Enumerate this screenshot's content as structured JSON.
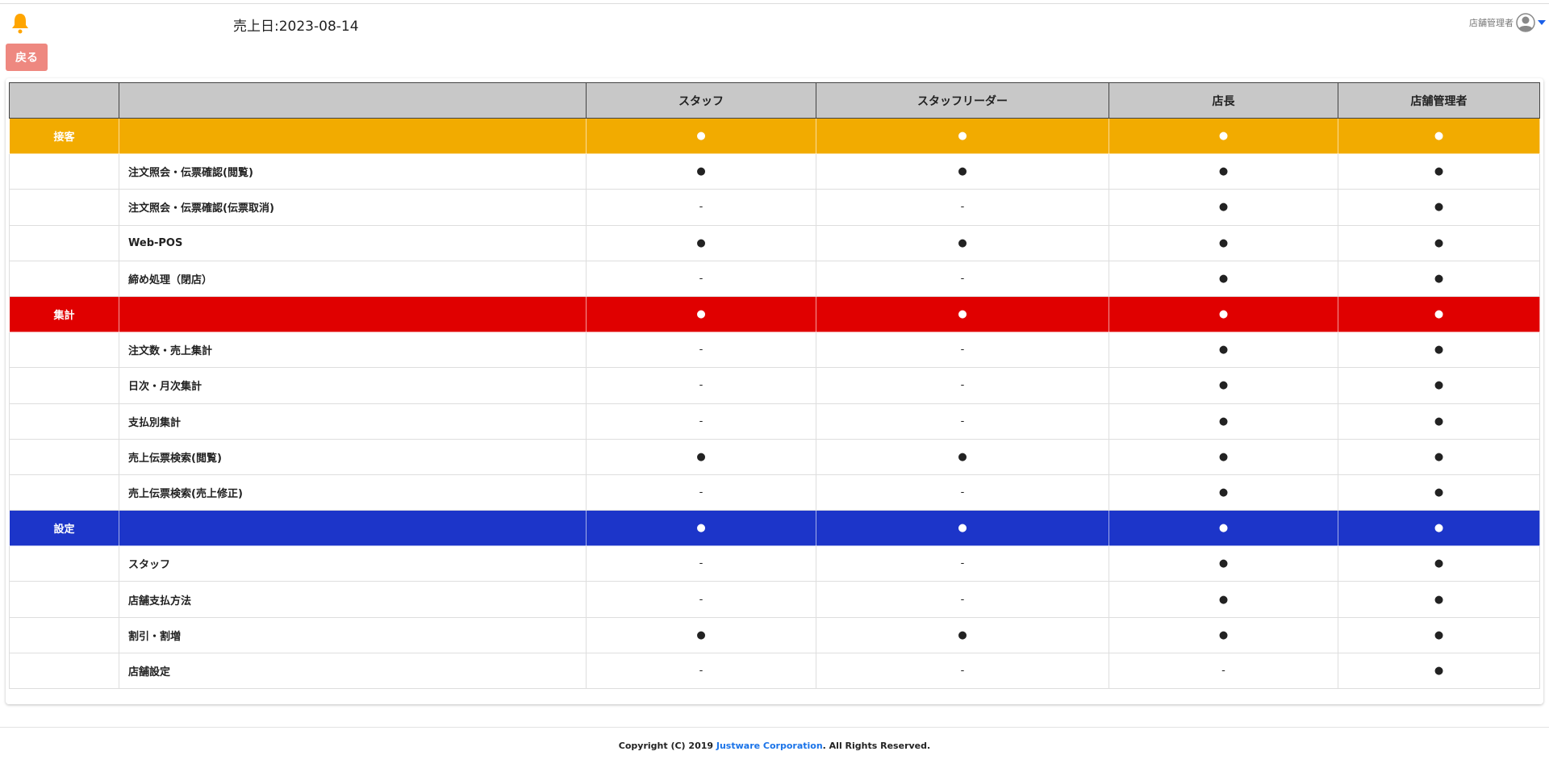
{
  "header": {
    "sales_date": "売上日:2023-08-14",
    "user_name": "店舗管理者",
    "bell_color": "#ffa500"
  },
  "back_label": "戻る",
  "table": {
    "columns": [
      "",
      "",
      "スタッフ",
      "スタッフリーダー",
      "店長",
      "店舗管理者"
    ],
    "rows": [
      {
        "category": "接客",
        "label": "",
        "color": "#f2ab00",
        "cells": [
          "●",
          "●",
          "●",
          "●"
        ]
      },
      {
        "category": "",
        "label": "注文照会・伝票確認(閲覧)",
        "cells": [
          "●",
          "●",
          "●",
          "●"
        ]
      },
      {
        "category": "",
        "label": "注文照会・伝票確認(伝票取消)",
        "cells": [
          "-",
          "-",
          "●",
          "●"
        ]
      },
      {
        "category": "",
        "label": "Web-POS",
        "cells": [
          "●",
          "●",
          "●",
          "●"
        ]
      },
      {
        "category": "",
        "label": "締め処理（閉店）",
        "cells": [
          "-",
          "-",
          "●",
          "●"
        ]
      },
      {
        "category": "集計",
        "label": "",
        "color": "#e00000",
        "cells": [
          "●",
          "●",
          "●",
          "●"
        ]
      },
      {
        "category": "",
        "label": "注文数・売上集計",
        "cells": [
          "-",
          "-",
          "●",
          "●"
        ]
      },
      {
        "category": "",
        "label": "日次・月次集計",
        "cells": [
          "-",
          "-",
          "●",
          "●"
        ]
      },
      {
        "category": "",
        "label": "支払別集計",
        "cells": [
          "-",
          "-",
          "●",
          "●"
        ]
      },
      {
        "category": "",
        "label": "売上伝票検索(閲覧)",
        "cells": [
          "●",
          "●",
          "●",
          "●"
        ]
      },
      {
        "category": "",
        "label": "売上伝票検索(売上修正)",
        "cells": [
          "-",
          "-",
          "●",
          "●"
        ]
      },
      {
        "category": "設定",
        "label": "",
        "color": "#1c35c9",
        "cells": [
          "●",
          "●",
          "●",
          "●"
        ]
      },
      {
        "category": "",
        "label": "スタッフ",
        "cells": [
          "-",
          "-",
          "●",
          "●"
        ]
      },
      {
        "category": "",
        "label": "店舗支払方法",
        "cells": [
          "-",
          "-",
          "●",
          "●"
        ]
      },
      {
        "category": "",
        "label": "割引・割増",
        "cells": [
          "●",
          "●",
          "●",
          "●"
        ]
      },
      {
        "category": "",
        "label": "店舗設定",
        "cells": [
          "-",
          "-",
          "-",
          "●"
        ]
      }
    ]
  },
  "footer": {
    "prefix": "Copyright (C) 2019 ",
    "company": "Justware Corporation",
    "suffix": ". All Rights Reserved."
  }
}
